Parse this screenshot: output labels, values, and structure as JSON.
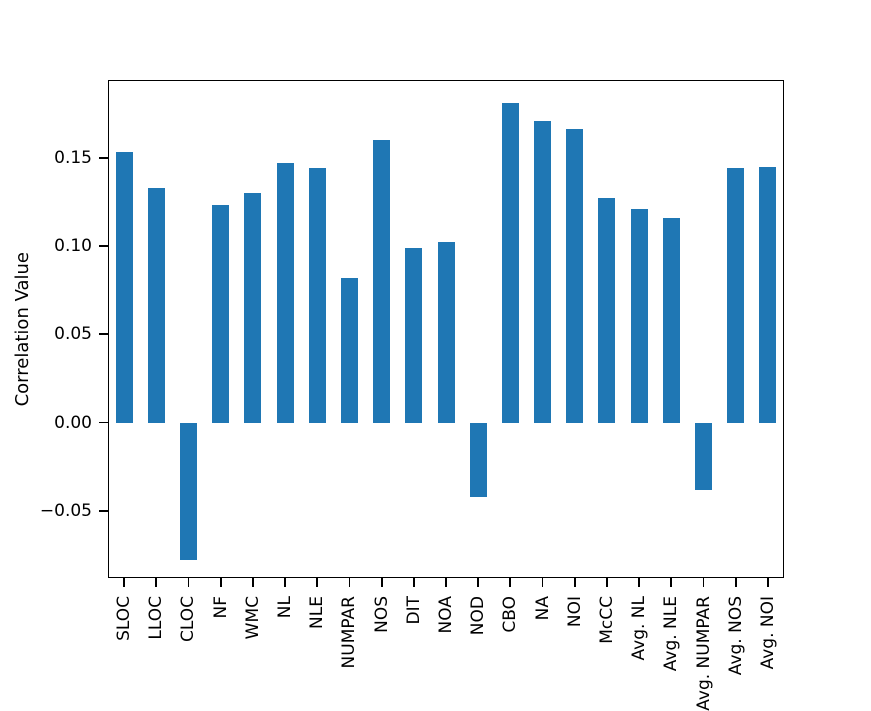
{
  "chart_data": {
    "type": "bar",
    "title": "",
    "xlabel": "",
    "ylabel": "Correlation Value",
    "grid": false,
    "legend": null,
    "bar_color": "#1f77b4",
    "axis_color": "#000000",
    "background_color": "#ffffff",
    "ylim": [
      -0.088,
      0.194
    ],
    "categories": [
      "SLOC",
      "LLOC",
      "CLOC",
      "NF",
      "WMC",
      "NL",
      "NLE",
      "NUMPAR",
      "NOS",
      "DIT",
      "NOA",
      "NOD",
      "CBO",
      "NA",
      "NOI",
      "McCC",
      "Avg. NL",
      "Avg. NLE",
      "Avg. NUMPAR",
      "Avg. NOS",
      "Avg. NOI"
    ],
    "values": [
      0.153,
      0.133,
      -0.078,
      0.123,
      0.13,
      0.147,
      0.144,
      0.082,
      0.16,
      0.099,
      0.102,
      -0.042,
      0.181,
      0.171,
      0.166,
      0.127,
      0.121,
      0.116,
      -0.038,
      0.144,
      0.145
    ],
    "yticks": [
      {
        "value": -0.05,
        "label": "−0.05"
      },
      {
        "value": 0.0,
        "label": "0.00"
      },
      {
        "value": 0.05,
        "label": "0.05"
      },
      {
        "value": 0.1,
        "label": "0.10"
      },
      {
        "value": 0.15,
        "label": "0.15"
      }
    ]
  }
}
